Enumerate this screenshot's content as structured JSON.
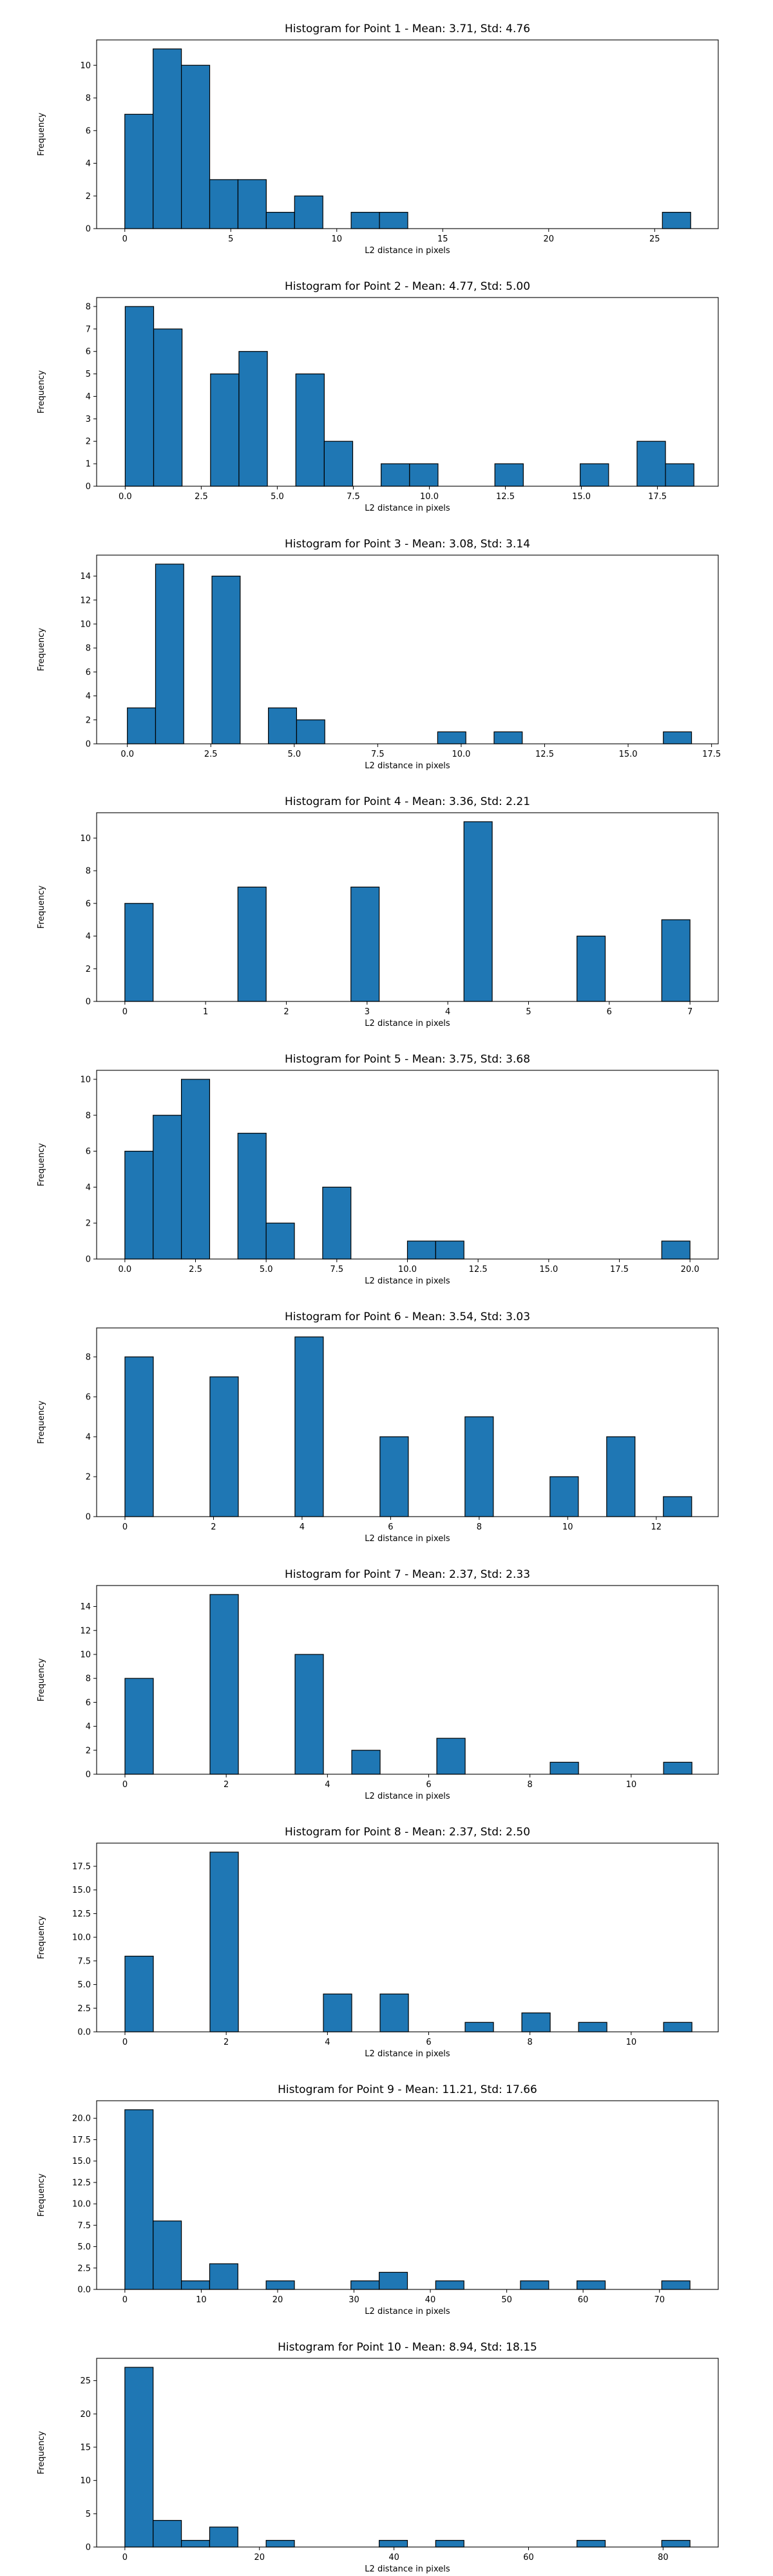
{
  "chart_data": [
    {
      "type": "bar",
      "title": "Histogram for Point 1 - Mean: 3.71, Std: 4.76",
      "xlabel": "L2 distance in pixels",
      "ylabel": "Frequency",
      "xlim": [
        -1.33,
        28.0
      ],
      "ylim": [
        0,
        11.55
      ],
      "xticks": [
        0,
        5,
        10,
        15,
        20,
        25
      ],
      "xtick_labels": [
        "0",
        "5",
        "10",
        "15",
        "20",
        "25"
      ],
      "yticks": [
        0,
        2,
        4,
        6,
        8,
        10
      ],
      "ytick_labels": [
        "0",
        "2",
        "4",
        "6",
        "8",
        "10"
      ],
      "bin_start": 0,
      "bin_width": 1.335,
      "values": [
        7,
        11,
        10,
        3,
        3,
        1,
        2,
        0,
        1,
        1,
        0,
        0,
        0,
        0,
        0,
        0,
        0,
        0,
        0,
        1
      ]
    },
    {
      "type": "bar",
      "title": "Histogram for Point 2 - Mean: 4.77, Std: 5.00",
      "xlabel": "L2 distance in pixels",
      "ylabel": "Frequency",
      "xlim": [
        -0.94,
        19.5
      ],
      "ylim": [
        0,
        8.4
      ],
      "xticks": [
        0,
        2.5,
        5,
        7.5,
        10,
        12.5,
        15,
        17.5
      ],
      "xtick_labels": [
        "0.0",
        "2.5",
        "5.0",
        "7.5",
        "10.0",
        "12.5",
        "15.0",
        "17.5"
      ],
      "yticks": [
        0,
        1,
        2,
        3,
        4,
        5,
        6,
        7,
        8
      ],
      "ytick_labels": [
        "0",
        "1",
        "2",
        "3",
        "4",
        "5",
        "6",
        "7",
        "8"
      ],
      "bin_start": 0,
      "bin_width": 0.935,
      "values": [
        8,
        7,
        0,
        5,
        6,
        0,
        5,
        2,
        0,
        1,
        1,
        0,
        0,
        1,
        0,
        0,
        1,
        0,
        2,
        1
      ]
    },
    {
      "type": "bar",
      "title": "Histogram for Point 3 - Mean: 3.08, Std: 3.14",
      "xlabel": "L2 distance in pixels",
      "ylabel": "Frequency",
      "xlim": [
        -0.92,
        17.7
      ],
      "ylim": [
        0,
        15.75
      ],
      "xticks": [
        0,
        2.5,
        5,
        7.5,
        10,
        12.5,
        15,
        17.5
      ],
      "xtick_labels": [
        "0.0",
        "2.5",
        "5.0",
        "7.5",
        "10.0",
        "12.5",
        "15.0",
        "17.5"
      ],
      "yticks": [
        0,
        2,
        4,
        6,
        8,
        10,
        12,
        14
      ],
      "ytick_labels": [
        "0",
        "2",
        "4",
        "6",
        "8",
        "10",
        "12",
        "14"
      ],
      "bin_start": 0,
      "bin_width": 0.845,
      "values": [
        3,
        15,
        0,
        14,
        0,
        3,
        2,
        0,
        0,
        0,
        0,
        1,
        0,
        1,
        0,
        0,
        0,
        0,
        0,
        1
      ]
    },
    {
      "type": "bar",
      "title": "Histogram for Point 4 - Mean: 3.36, Std: 2.21",
      "xlabel": "L2 distance in pixels",
      "ylabel": "Frequency",
      "xlim": [
        -0.35,
        7.35
      ],
      "ylim": [
        0,
        11.55
      ],
      "xticks": [
        0,
        1,
        2,
        3,
        4,
        5,
        6,
        7
      ],
      "xtick_labels": [
        "0",
        "1",
        "2",
        "3",
        "4",
        "5",
        "6",
        "7"
      ],
      "yticks": [
        0,
        2,
        4,
        6,
        8,
        10
      ],
      "ytick_labels": [
        "0",
        "2",
        "4",
        "6",
        "8",
        "10"
      ],
      "bin_start": 0,
      "bin_width": 0.35,
      "values": [
        6,
        0,
        0,
        0,
        7,
        0,
        0,
        0,
        7,
        0,
        0,
        0,
        11,
        0,
        0,
        0,
        4,
        0,
        0,
        5
      ]
    },
    {
      "type": "bar",
      "title": "Histogram for Point 5 - Mean: 3.75, Std: 3.68",
      "xlabel": "L2 distance in pixels",
      "ylabel": "Frequency",
      "xlim": [
        -1.0,
        21.0
      ],
      "ylim": [
        0,
        10.5
      ],
      "xticks": [
        0,
        2.5,
        5,
        7.5,
        10,
        12.5,
        15,
        17.5,
        20
      ],
      "xtick_labels": [
        "0.0",
        "2.5",
        "5.0",
        "7.5",
        "10.0",
        "12.5",
        "15.0",
        "17.5",
        "20.0"
      ],
      "yticks": [
        0,
        2,
        4,
        6,
        8,
        10
      ],
      "ytick_labels": [
        "0",
        "2",
        "4",
        "6",
        "8",
        "10"
      ],
      "bin_start": 0,
      "bin_width": 1.0,
      "values": [
        6,
        8,
        10,
        0,
        7,
        2,
        0,
        4,
        0,
        0,
        1,
        1,
        0,
        0,
        0,
        0,
        0,
        0,
        0,
        1
      ]
    },
    {
      "type": "bar",
      "title": "Histogram for Point 6 - Mean: 3.54, Std: 3.03",
      "xlabel": "L2 distance in pixels",
      "ylabel": "Frequency",
      "xlim": [
        -0.64,
        13.4
      ],
      "ylim": [
        0,
        9.45
      ],
      "xticks": [
        0,
        2,
        4,
        6,
        8,
        10,
        12
      ],
      "xtick_labels": [
        "0",
        "2",
        "4",
        "6",
        "8",
        "10",
        "12"
      ],
      "yticks": [
        0,
        2,
        4,
        6,
        8
      ],
      "ytick_labels": [
        "0",
        "2",
        "4",
        "6",
        "8"
      ],
      "bin_start": 0,
      "bin_width": 0.64,
      "values": [
        8,
        0,
        0,
        7,
        0,
        0,
        9,
        0,
        0,
        4,
        0,
        0,
        5,
        0,
        0,
        2,
        0,
        4,
        0,
        1
      ]
    },
    {
      "type": "bar",
      "title": "Histogram for Point 7 - Mean: 2.37, Std: 2.33",
      "xlabel": "L2 distance in pixels",
      "ylabel": "Frequency",
      "xlim": [
        -0.56,
        11.72
      ],
      "ylim": [
        0,
        15.75
      ],
      "xticks": [
        0,
        2,
        4,
        6,
        8,
        10
      ],
      "xtick_labels": [
        "0",
        "2",
        "4",
        "6",
        "8",
        "10"
      ],
      "yticks": [
        0,
        2,
        4,
        6,
        8,
        10,
        12,
        14
      ],
      "ytick_labels": [
        "0",
        "2",
        "4",
        "6",
        "8",
        "10",
        "12",
        "14"
      ],
      "bin_start": 0,
      "bin_width": 0.56,
      "values": [
        8,
        0,
        0,
        15,
        0,
        0,
        10,
        0,
        2,
        0,
        0,
        3,
        0,
        0,
        0,
        1,
        0,
        0,
        0,
        1
      ]
    },
    {
      "type": "bar",
      "title": "Histogram for Point 8 - Mean: 2.37, Std: 2.50",
      "xlabel": "L2 distance in pixels",
      "ylabel": "Frequency",
      "xlim": [
        -0.56,
        11.72
      ],
      "ylim": [
        0,
        19.95
      ],
      "xticks": [
        0,
        2,
        4,
        6,
        8,
        10
      ],
      "xtick_labels": [
        "0",
        "2",
        "4",
        "6",
        "8",
        "10"
      ],
      "yticks": [
        0,
        2.5,
        5,
        7.5,
        10,
        12.5,
        15,
        17.5
      ],
      "ytick_labels": [
        "0.0",
        "2.5",
        "5.0",
        "7.5",
        "10.0",
        "12.5",
        "15.0",
        "17.5"
      ],
      "bin_start": 0,
      "bin_width": 0.56,
      "values": [
        8,
        0,
        0,
        19,
        0,
        0,
        0,
        4,
        0,
        4,
        0,
        0,
        1,
        0,
        2,
        0,
        1,
        0,
        0,
        1
      ]
    },
    {
      "type": "bar",
      "title": "Histogram for Point 9 - Mean: 11.21, Std: 17.66",
      "xlabel": "L2 distance in pixels",
      "ylabel": "Frequency",
      "xlim": [
        -3.7,
        77.7
      ],
      "ylim": [
        0,
        22.05
      ],
      "xticks": [
        0,
        10,
        20,
        30,
        40,
        50,
        60,
        70
      ],
      "xtick_labels": [
        "0",
        "10",
        "20",
        "30",
        "40",
        "50",
        "60",
        "70"
      ],
      "yticks": [
        0,
        2.5,
        5,
        7.5,
        10,
        12.5,
        15,
        17.5,
        20
      ],
      "ytick_labels": [
        "0.0",
        "2.5",
        "5.0",
        "7.5",
        "10.0",
        "12.5",
        "15.0",
        "17.5",
        "20.0"
      ],
      "bin_start": 0,
      "bin_width": 3.7,
      "values": [
        21,
        8,
        1,
        3,
        0,
        1,
        0,
        0,
        1,
        2,
        0,
        1,
        0,
        0,
        1,
        0,
        1,
        0,
        0,
        1
      ]
    },
    {
      "type": "bar",
      "title": "Histogram for Point 10 - Mean: 8.94, Std: 18.15",
      "xlabel": "L2 distance in pixels",
      "ylabel": "Frequency",
      "xlim": [
        -4.2,
        88.2
      ],
      "ylim": [
        0,
        28.35
      ],
      "xticks": [
        0,
        20,
        40,
        60,
        80
      ],
      "xtick_labels": [
        "0",
        "20",
        "40",
        "60",
        "80"
      ],
      "yticks": [
        0,
        5,
        10,
        15,
        20,
        25
      ],
      "ytick_labels": [
        "0",
        "5",
        "10",
        "15",
        "20",
        "25"
      ],
      "bin_start": 0,
      "bin_width": 4.2,
      "values": [
        27,
        4,
        1,
        3,
        0,
        1,
        0,
        0,
        0,
        1,
        0,
        1,
        0,
        0,
        0,
        0,
        1,
        0,
        0,
        1
      ]
    }
  ],
  "colors": {
    "bar_fill": "#1f77b4",
    "bar_edge": "#000000",
    "axes": "#000000",
    "background": "#ffffff"
  }
}
